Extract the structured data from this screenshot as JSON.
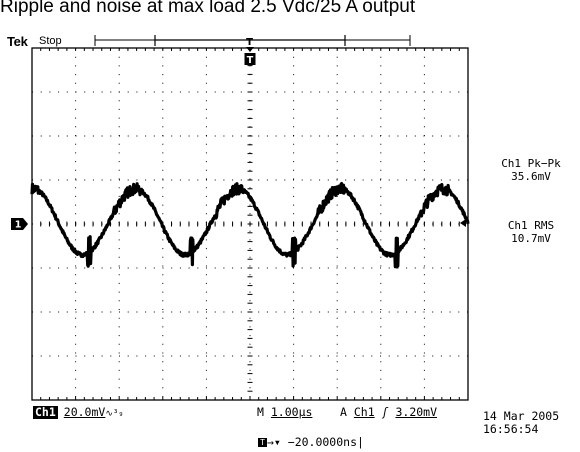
{
  "caption": "Ripple and noise at max load 2.5 Vdc/25 A output",
  "header": {
    "brand": "Tek",
    "run_state": "Stop"
  },
  "markers": {
    "trigger_marker": "T",
    "channel_marker": "1"
  },
  "measurements": [
    {
      "label": "Ch1 Pk−Pk",
      "value": "35.6mV"
    },
    {
      "label": "Ch1 RMS",
      "value": "10.7mV"
    }
  ],
  "status_bar": {
    "channel": "Ch1",
    "channel_scale": "20.0mV",
    "bandwidth_symbol": "∿³₉",
    "timebase_prefix": "M",
    "timebase": "1.00µs",
    "trigger_prefix": "A",
    "trigger_source": "Ch1",
    "trigger_slope": "ʃ",
    "trigger_level": "3.20mV",
    "trigger_offset": "→▾ −20.0000ns"
  },
  "timestamp": {
    "date": "14 Mar 2005",
    "time": "16:56:54"
  },
  "chart_data": {
    "type": "line",
    "title": "",
    "xlabel": "",
    "ylabel": "",
    "grid": true,
    "x_divisions": 10,
    "y_divisions": 8,
    "x_unit_per_div": "1.00µs",
    "y_unit_per_div": "20.0mV",
    "xlim_div": [
      0,
      10
    ],
    "ylim_div": [
      -4,
      4
    ],
    "series": [
      {
        "waveform": "sawtooth-ripple-with-switching-noise",
        "period_div": 2.35,
        "first_peak_div": 0.03,
        "amplitude_div": 0.75,
        "offset_div": 0.05,
        "noise_div": 0.1
      }
    ]
  }
}
